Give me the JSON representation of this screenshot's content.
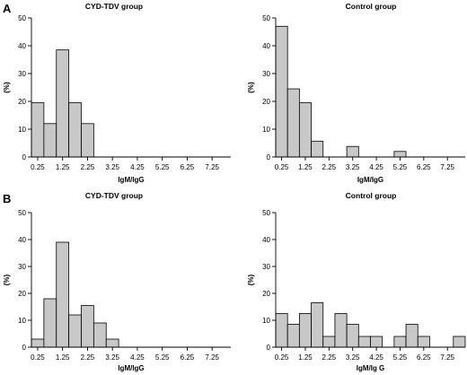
{
  "chart_data": [
    {
      "panel": "A",
      "type": "bar",
      "title": "CYD-TDV group",
      "xlabel": "IgM/IgG",
      "ylabel": "(%)",
      "xticks": [
        "0.25",
        "1.25",
        "2.25",
        "3.25",
        "4.25",
        "5.25",
        "6.25",
        "7.25"
      ],
      "xlim": [
        0,
        8
      ],
      "ylim": [
        0,
        50
      ],
      "yticks": [
        0,
        10,
        20,
        30,
        40,
        50
      ],
      "bin_width": 0.5,
      "x": [
        0.25,
        0.75,
        1.25,
        1.75,
        2.25
      ],
      "values": [
        19.5,
        12,
        38.5,
        19.5,
        12
      ]
    },
    {
      "panel": "",
      "type": "bar",
      "title": "Control group",
      "xlabel": "IgM/IgG",
      "ylabel": "(%)",
      "xticks": [
        "0.25",
        "1.25",
        "2.25",
        "3.25",
        "4.25",
        "5.25",
        "6.25",
        "7.25"
      ],
      "xlim": [
        0,
        8
      ],
      "ylim": [
        0,
        50
      ],
      "yticks": [
        0,
        10,
        20,
        30,
        40,
        50
      ],
      "bin_width": 0.5,
      "x": [
        0.25,
        0.75,
        1.25,
        1.75,
        3.25,
        5.25
      ],
      "values": [
        47,
        24.5,
        19.5,
        5.7,
        3.8,
        2
      ]
    },
    {
      "panel": "B",
      "type": "bar",
      "title": "CYD-TDV group",
      "xlabel": "IgM/IgG",
      "ylabel": "(%)",
      "xticks": [
        "0.25",
        "1.25",
        "2.25",
        "3.25",
        "4.25",
        "5.25",
        "6.25",
        "7.25"
      ],
      "xlim": [
        0,
        8
      ],
      "ylim": [
        0,
        50
      ],
      "yticks": [
        0,
        10,
        20,
        30,
        40,
        50
      ],
      "bin_width": 0.5,
      "x": [
        0.25,
        0.75,
        1.25,
        1.75,
        2.25,
        2.75,
        3.25
      ],
      "values": [
        3,
        18,
        39,
        12,
        15.5,
        9,
        3
      ]
    },
    {
      "panel": "",
      "type": "bar",
      "title": "Control group",
      "xlabel": "IgM/Ig G",
      "ylabel": "(%)",
      "xticks": [
        "0.25",
        "1.25",
        "2.25",
        "3.25",
        "4.25",
        "5.25",
        "6.25",
        "7.25"
      ],
      "xlim": [
        0,
        8
      ],
      "ylim": [
        0,
        50
      ],
      "yticks": [
        0,
        10,
        20,
        30,
        40,
        50
      ],
      "bin_width": 0.5,
      "x": [
        0.25,
        0.75,
        1.25,
        1.75,
        2.25,
        2.75,
        3.25,
        3.75,
        4.25,
        5.25,
        5.75,
        6.25,
        7.75
      ],
      "values": [
        12.5,
        8.5,
        12.5,
        16.5,
        4,
        12.5,
        8.5,
        4,
        4,
        4,
        8.5,
        4,
        4
      ]
    }
  ]
}
